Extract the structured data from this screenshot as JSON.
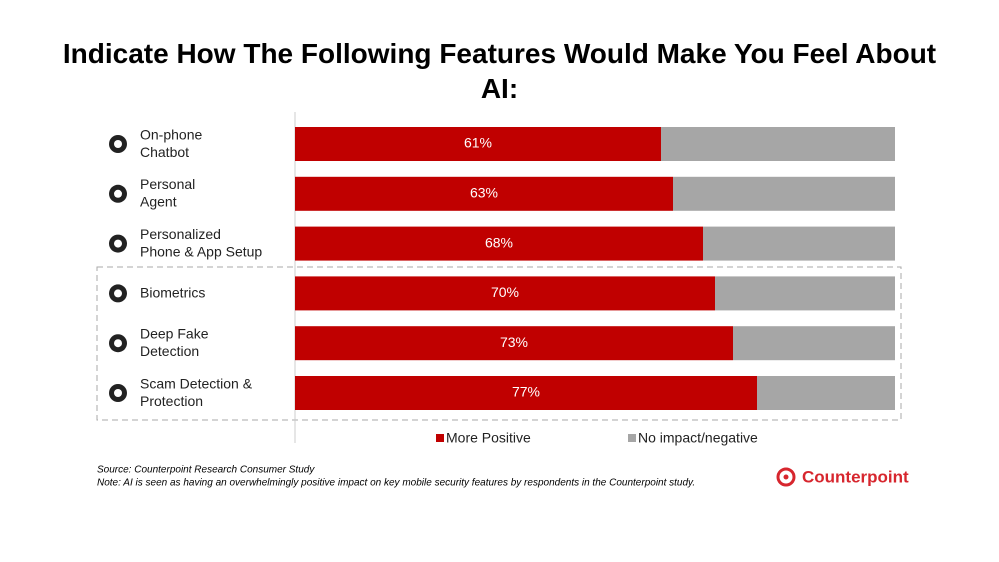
{
  "chart_data": {
    "type": "stacked-bar-horizontal",
    "title": "Indicate How The Following Features Would Make You Feel About AI:",
    "categories": [
      "On-phone\nChatbot",
      "Personal\nAgent",
      "Personalized\nPhone & App Setup",
      "Biometrics",
      "Deep Fake\nDetection",
      "Scam Detection &\nProtection"
    ],
    "series": [
      {
        "name": "More Positive",
        "color": "#c00000",
        "values": [
          61,
          63,
          68,
          70,
          73,
          77
        ],
        "value_labels": [
          "61%",
          "63%",
          "68%",
          "70%",
          "73%",
          "77%"
        ]
      },
      {
        "name": "No impact/negative",
        "color": "#a6a6a6",
        "values": [
          39,
          37,
          32,
          30,
          27,
          23
        ]
      }
    ]
  },
  "footer": {
    "source": "Source: Counterpoint Research Consumer Study",
    "note": "Note: AI is seen as having an overwhelmingly positive impact on key mobile security features by respondents in the Counterpoint study.",
    "brand": "Counterpoint"
  }
}
